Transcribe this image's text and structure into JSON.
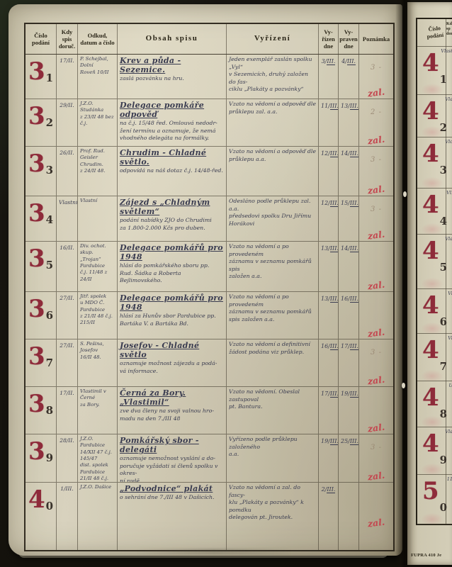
{
  "colors": {
    "stamp_red": "#8e2b3a",
    "note_red": "#c4454e",
    "ink": "#3a3c50",
    "paper": "#d2ccb7"
  },
  "left_page": {
    "header": {
      "cislo": "Číslo\npodání",
      "kdy": "Kdy\nspis\ndoruč.",
      "odkud": "Odkud,\ndatum a číslo",
      "obsah": "Obsah spisu",
      "vyrizeni": "Vyřízení",
      "vyrizen_dne": "Vy-\nřízen\ndne",
      "vypraven_dne": "Vy-\npraven\ndne",
      "poznamka": "Poznámka"
    },
    "rows": [
      {
        "num_big": "3",
        "num_small": "1",
        "kdy": "17/II.",
        "odkud": "P. Schejbal, Dolní\nRoveň 10/II",
        "title": "Krev a půda - Sezemice.",
        "body": "zaslá pozvánku na hru.",
        "vyrizeni": "Jeden exemplář zaslán spolku „Vyl“\nv Sezemicích, druhý založen do fas-\nciklu „Plakáty a pozvánky“",
        "vyrizen_d": "3/",
        "vyrizen_m": "III.",
        "vypraven_d": "4/",
        "vypraven_m": "III.",
        "pencil": "3 -",
        "red_note": "zal."
      },
      {
        "num_big": "3",
        "num_small": "2",
        "kdy": "29/II.",
        "odkud": "J.Z.O. Studánka\nz 23/II 48 bez č.j.",
        "title": "Delegace pomkáře odpověď",
        "body": "na č.j. 15/48 řed. Omlouvá nedodr-\nžení termínu a oznamuje, že nemá\nvhodného delegáta na formálky.",
        "vyrizeni": "Vzato na vědomí a odpověď dle\nprůklepu zal. a.a.",
        "vyrizen_d": "11/",
        "vyrizen_m": "III.",
        "vypraven_d": "13/",
        "vypraven_m": "III.",
        "pencil": "2 -",
        "red_note": "zal."
      },
      {
        "num_big": "3",
        "num_small": "3",
        "kdy": "26/II.",
        "odkud": "Prof. Rud. Geisler\nChrudim.\nz 24/II 48.",
        "title": "Chrudim - Chladné světlo.",
        "body": "odpovídá na náš dotaz č.j. 14/48-řed.",
        "vyrizeni": "Vzato na vědomí a odpověď dle\nprůklepu a.a.",
        "vyrizen_d": "12/",
        "vyrizen_m": "III.",
        "vypraven_d": "14/",
        "vypraven_m": "III.",
        "pencil": "3 -",
        "red_note": "zal."
      },
      {
        "num_big": "3",
        "num_small": "4",
        "kdy": "Vlastní",
        "odkud": "Vlastní",
        "title": "Zájezd s „Chladným světlem“",
        "body": "podání nabídky ZJO do Chrudimi\nza 1.800-2.000 Kčs pro duben.",
        "vyrizeni": "Odesláno podle průklepu zal. a.a.\npředsedovi spolku Dru Jiřímu Horákovi",
        "vyrizen_d": "12/",
        "vyrizen_m": "III.",
        "vypraven_d": "15/",
        "vypraven_m": "III.",
        "pencil": "3 -",
        "red_note": "zal."
      },
      {
        "num_big": "3",
        "num_small": "5",
        "kdy": "16/II.",
        "odkud": "Div. ochot. skup.\n„Trojan“ Pardubice\nč.j. 11/48 z 24/II",
        "title": "Delegace pomkářů pro 1948",
        "body": "hlásí do pomkářského sboru pp.\nRud. Šádka a Roberta Bejlimovského.",
        "vyrizeni": "Vzato na vědomí a po provedeném\nzáznamu v seznamu pomkářů spis\nzaložen a.a.",
        "vyrizen_d": "13/",
        "vyrizen_m": "III.",
        "vypraven_d": "14/",
        "vypraven_m": "III.",
        "pencil": "",
        "red_note": "zal."
      },
      {
        "num_big": "3",
        "num_small": "6",
        "kdy": "27/II.",
        "odkud": "Jitř. spolek\nu MDO Č. Pardubice\nz 21/II 48 č.j. 215/II",
        "title": "Delegace pomkářů pro 1948",
        "body": "hlásí za Hunův sbor Pardubice pp.\nBartáka V. a Bartáka Bd.",
        "vyrizeni": "Vzato na vědomí a po provedeném\nzáznamu v seznamu pomkářů\nspis založen a.a.",
        "vyrizen_d": "13/",
        "vyrizen_m": "III.",
        "vypraven_d": "16/",
        "vypraven_m": "III.",
        "pencil": "",
        "red_note": "zal."
      },
      {
        "num_big": "3",
        "num_small": "7",
        "kdy": "27/II.",
        "odkud": "S. Pešina, Josefov\n16/II 48.",
        "title": "Josefov - Chladné světlo",
        "body": "oznamuje možnost zájezdu a podá-\nvá informace.",
        "vyrizeni": "Vzato na vědomí a definitivní\nžádost podána viz průklep.",
        "vyrizen_d": "16/",
        "vyrizen_m": "III.",
        "vypraven_d": "17/",
        "vypraven_m": "III.",
        "pencil": "3 -",
        "red_note": "zal."
      },
      {
        "num_big": "3",
        "num_small": "8",
        "kdy": "17/II.",
        "odkud": "Vlastimil v Černé\nza Bory.",
        "title": "Černá za Bory. „Vlastimil“",
        "body": "zve dva členy na svoji valnou hro-\nmadu na den 7./III 48",
        "vyrizeni": "Vzato na vědomí. Obeslal zastupoval\npt. Bantura.",
        "vyrizen_d": "17/",
        "vyrizen_m": "III.",
        "vypraven_d": "19/",
        "vypraven_m": "III.",
        "pencil": "",
        "red_note": "zal."
      },
      {
        "num_big": "3",
        "num_small": "9",
        "kdy": "28/II.",
        "odkud": "J.Z.O. Pardubice\n14/XII 47 č.j. 145/47\ndist. spolek Pardubice\n21/II 48 č.j. 201/II-ř.",
        "title": "Pomkářský sbor - delegáti",
        "body": "oznamuje nemožnost vyslání a do-\nporučuje vyžádati si členů spolku v okres-\nní radě.",
        "vyrizeni": "Vyřízeno podle průklepu založeného\na.a.",
        "vyrizen_d": "19/",
        "vyrizen_m": "III.",
        "vypraven_d": "25/",
        "vypraven_m": "III.",
        "pencil": "3 -",
        "red_note": "zal."
      },
      {
        "num_big": "4",
        "num_small": "0",
        "kdy": "1/III.",
        "odkud": "J.Z.O. Dašice",
        "title": "„Podvodnice“ plakát",
        "body": "o sehrání dne 7./III 48 v Dašicích.",
        "vyrizeni": "Vzato na vědomí a zal. do fascy-\nklu „Plakáty a pozvánky“ k pomdku\ndelegován pt. Jiroutek.",
        "vyrizen_d": "2/",
        "vyrizen_m": "III.",
        "vypraven_d": "",
        "vypraven_m": "",
        "pencil": "",
        "red_note": "zal."
      }
    ]
  },
  "right_page": {
    "header_cislo": "Číslo\npodání",
    "header_kdy": "Kd\nsp\ndor",
    "rows": [
      {
        "num_big": "4",
        "num_small": "1",
        "edge": "Vlast"
      },
      {
        "num_big": "4",
        "num_small": "2",
        "edge": "Vla"
      },
      {
        "num_big": "4",
        "num_small": "3",
        "edge": "Vlo"
      },
      {
        "num_big": "4",
        "num_small": "4",
        "edge": "Vl."
      },
      {
        "num_big": "4",
        "num_small": "5",
        "edge": "Vla"
      },
      {
        "num_big": "4",
        "num_small": "6",
        "edge": "Vl"
      },
      {
        "num_big": "4",
        "num_small": "7",
        "edge": "Vl"
      },
      {
        "num_big": "4",
        "num_small": "8",
        "edge": "U"
      },
      {
        "num_big": "4",
        "num_small": "9",
        "edge": "Vla"
      },
      {
        "num_big": "5",
        "num_small": "0",
        "edge": "11"
      }
    ],
    "footer": "FUPRA 410 Je"
  }
}
